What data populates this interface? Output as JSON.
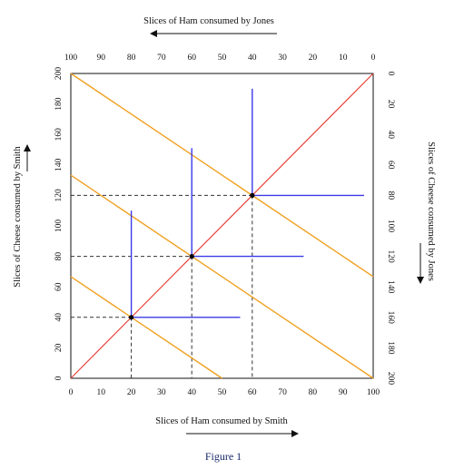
{
  "title_top": "Slices of Ham consumed by Jones",
  "xlabel_bottom": "Slices of Ham consumed by Smith",
  "ylabel_left": "Slices of Cheese consumed by Smith",
  "ylabel_right": "Slices of Cheese consumed by Jones",
  "caption": "Figure 1",
  "chart_data": {
    "type": "edgeworth-box",
    "smith_ham_ticks": [
      0,
      10,
      20,
      30,
      40,
      50,
      60,
      70,
      80,
      90,
      100
    ],
    "jones_ham_ticks": [
      100,
      90,
      80,
      70,
      60,
      50,
      40,
      30,
      20,
      10,
      0
    ],
    "smith_cheese_ticks": [
      0,
      20,
      40,
      60,
      80,
      100,
      120,
      140,
      160,
      180,
      200
    ],
    "jones_cheese_ticks": [
      0,
      20,
      40,
      60,
      80,
      100,
      120,
      140,
      160,
      180,
      200
    ],
    "xlim": [
      0,
      100
    ],
    "ylim": [
      0,
      200
    ],
    "contract_curve": {
      "from": [
        0,
        0
      ],
      "to": [
        100,
        200
      ],
      "color": "#e8413a"
    },
    "budget_lines": {
      "color": "#f0a020",
      "lines": [
        {
          "from": [
            0,
            66.7
          ],
          "to": [
            50,
            0
          ]
        },
        {
          "from": [
            0,
            133.3
          ],
          "to": [
            100,
            0
          ]
        },
        {
          "from": [
            0,
            200
          ],
          "to": [
            100,
            66.7
          ]
        }
      ]
    },
    "indifference": {
      "color": "#3a3ae8",
      "corners": [
        {
          "x": 20,
          "y": 40,
          "vertical_to": 110,
          "horizontal_to": 56
        },
        {
          "x": 40,
          "y": 80,
          "vertical_to": 151,
          "horizontal_to": 77
        },
        {
          "x": 60,
          "y": 120,
          "vertical_to": 190,
          "horizontal_to": 97
        }
      ]
    },
    "equilibrium_points": [
      [
        20,
        40
      ],
      [
        40,
        80
      ],
      [
        60,
        120
      ]
    ],
    "guides_color": "#333333"
  }
}
